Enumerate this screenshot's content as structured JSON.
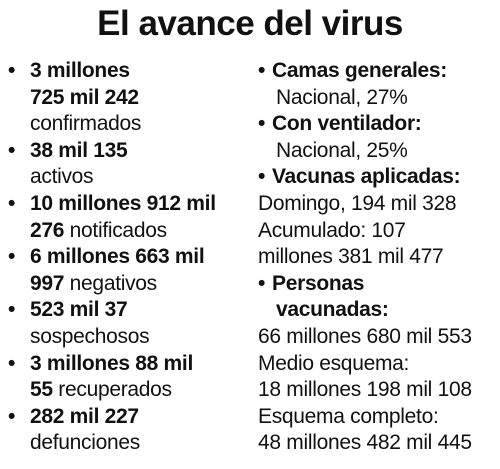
{
  "title": "El avance del virus",
  "bullet_glyph": "•",
  "left": {
    "confirmados": {
      "line1": "3 millones",
      "line2": "725 mil 242",
      "line3": "confirmados"
    },
    "activos": {
      "value": "38 mil 135",
      "label": "activos"
    },
    "notificados": {
      "line1": "10 millones 912 mil",
      "line2_bold": "276",
      "line2_rest": " notificados"
    },
    "negativos": {
      "line1": "6 millones 663 mil",
      "line2_bold": "997",
      "line2_rest": " negativos"
    },
    "sospechosos": {
      "value": "523 mil 37",
      "label": "sospechosos"
    },
    "recuperados": {
      "line1": "3 millones 88 mil",
      "line2_bold": "55",
      "line2_rest": " recuperados"
    },
    "defunciones": {
      "value": "282 mil 227",
      "label": "defunciones"
    }
  },
  "right": {
    "camas": {
      "heading": "Camas generales:",
      "value": "Nacional, 27%"
    },
    "ventilador": {
      "heading": "Con ventilador:",
      "value": "Nacional, 25%"
    },
    "vacunas": {
      "heading": "Vacunas aplicadas:",
      "line1": "Domingo, 194 mil 328",
      "line2": "Acumulado: 107",
      "line3": "millones 381 mil 477"
    },
    "personas": {
      "heading1": "Personas",
      "heading2": "vacunadas:",
      "line1": "66 millones 680 mil 553",
      "line2": "Medio esquema:",
      "line3": "18 millones 198 mil 108",
      "line4": "Esquema completo:",
      "line5": "48 millones 482 mil 445"
    }
  }
}
